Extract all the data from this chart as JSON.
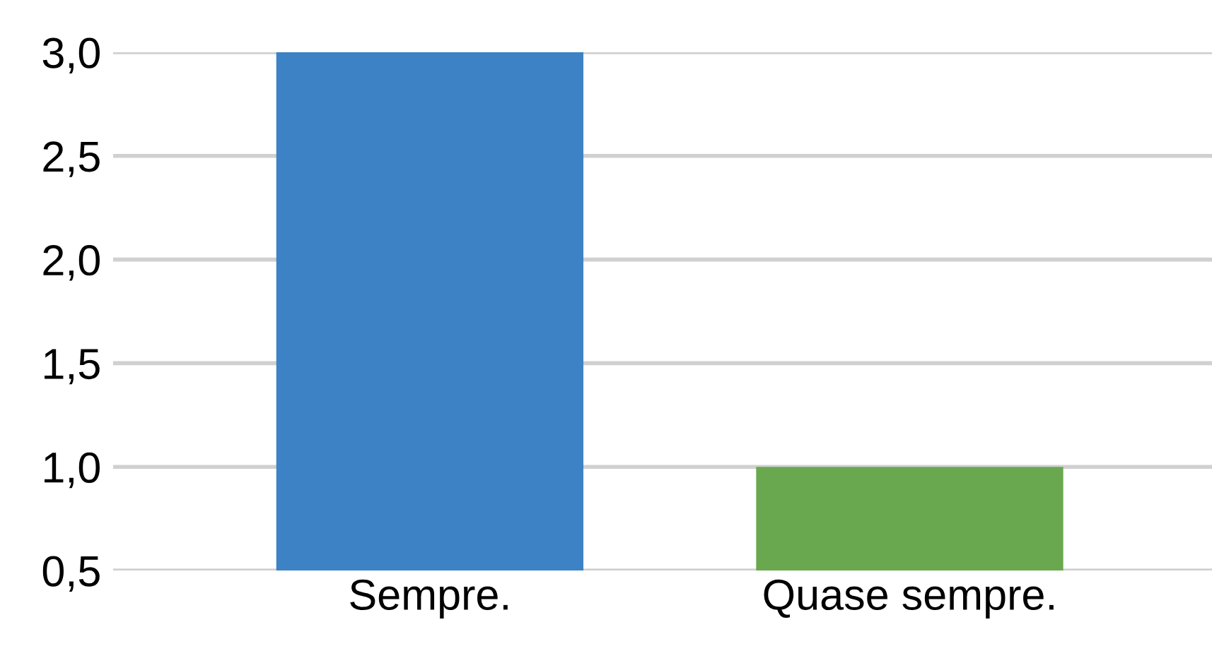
{
  "chart_data": {
    "type": "bar",
    "categories": [
      "Sempre.",
      "Quase sempre."
    ],
    "values": [
      3.0,
      1.0
    ],
    "colors": [
      "#3d82c4",
      "#6aa84f"
    ],
    "ylim": [
      0.5,
      3.0
    ],
    "yticks": [
      {
        "value": 0.5,
        "label": "0,5"
      },
      {
        "value": 1.0,
        "label": "1,0"
      },
      {
        "value": 1.5,
        "label": "1,5"
      },
      {
        "value": 2.0,
        "label": "2,0"
      },
      {
        "value": 2.5,
        "label": "2,5"
      },
      {
        "value": 3.0,
        "label": "3,0"
      }
    ],
    "grid": "y"
  }
}
